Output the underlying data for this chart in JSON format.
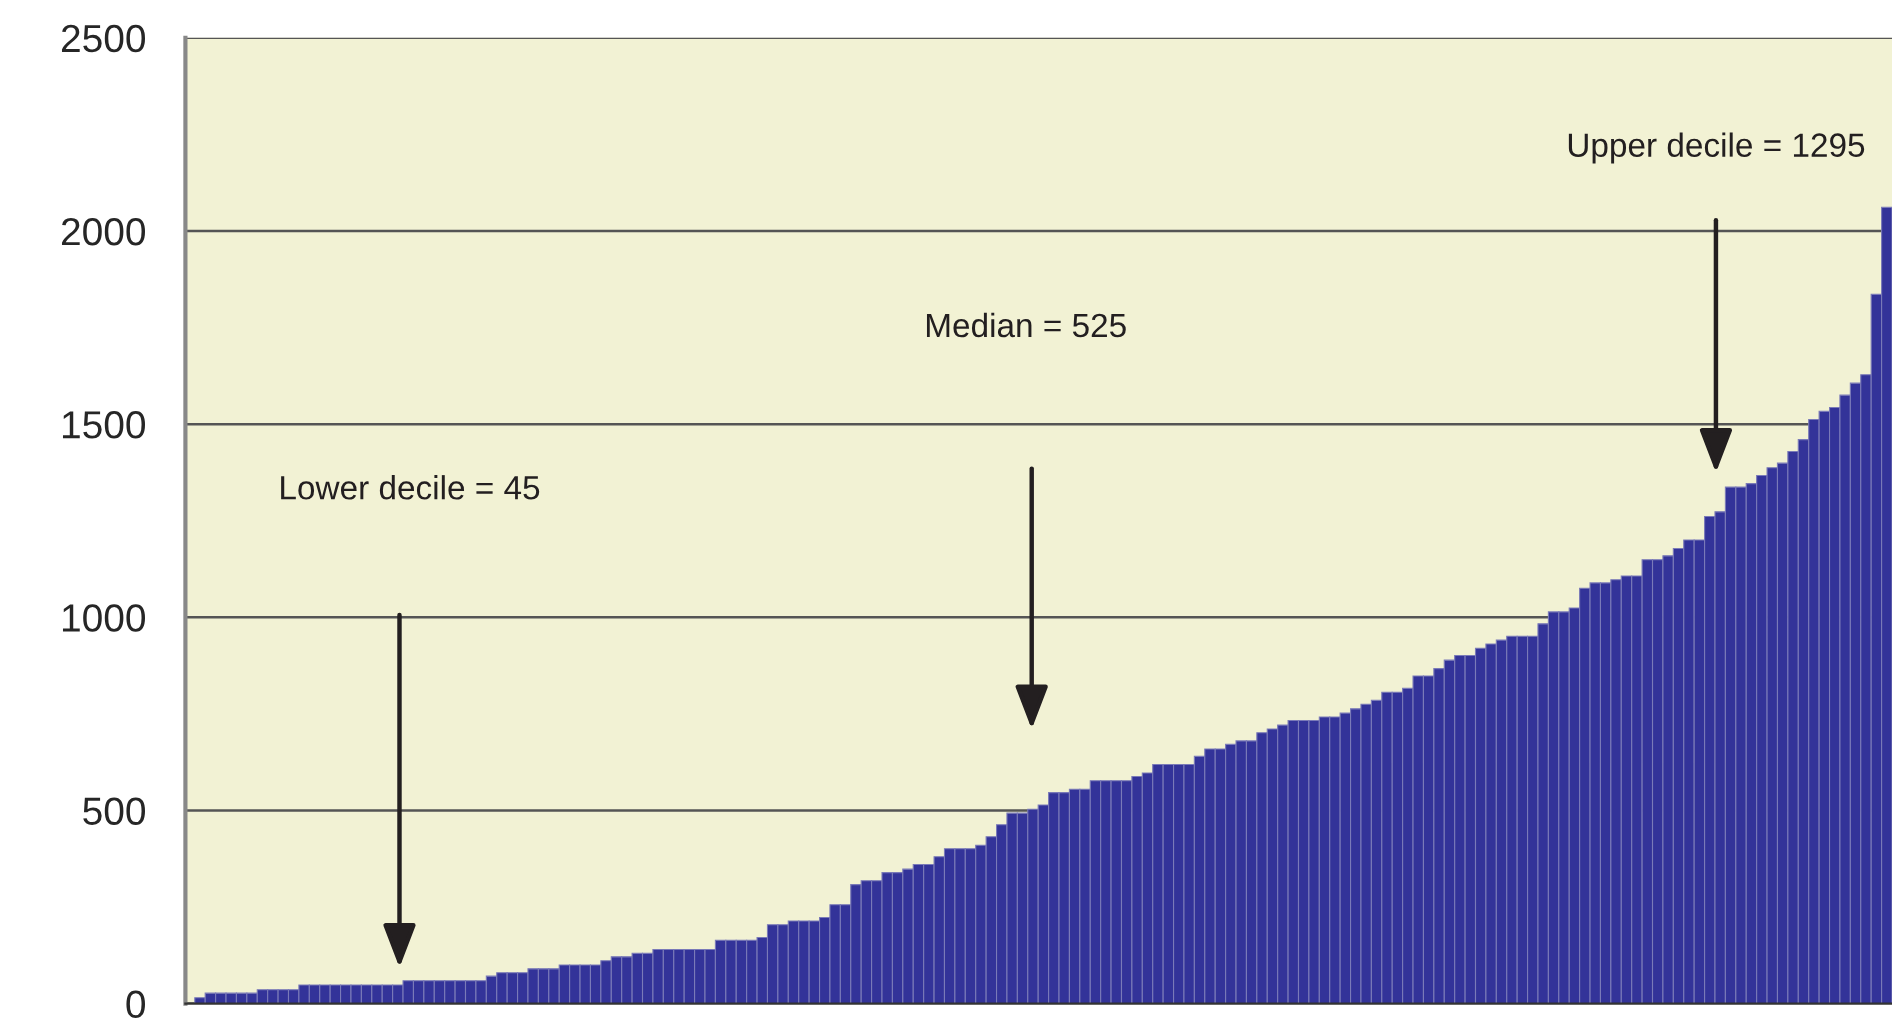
{
  "chart_data": {
    "type": "bar",
    "categories": [
      null,
      null,
      null,
      null,
      null,
      null,
      null,
      null,
      null,
      null,
      null,
      null,
      null,
      null,
      null,
      null,
      null,
      null,
      null,
      null,
      null,
      null,
      null,
      null,
      null,
      null,
      null,
      null,
      null,
      null,
      null,
      null,
      null,
      null,
      null,
      null,
      null,
      null,
      null,
      null,
      null,
      null,
      null,
      null,
      null,
      null,
      null,
      null,
      null,
      null,
      null,
      null,
      null,
      null,
      null,
      null,
      null,
      null,
      null,
      null,
      null,
      null,
      null,
      null,
      null,
      null,
      null,
      null,
      null,
      null,
      null,
      null,
      null,
      null,
      null,
      null,
      null,
      null,
      null,
      null,
      null,
      null,
      null,
      null,
      null,
      null,
      null,
      null,
      null,
      null,
      null,
      null,
      null,
      null,
      null,
      null,
      null,
      null,
      null,
      null,
      null,
      null,
      null,
      null,
      null,
      null,
      null,
      null,
      null,
      null,
      null,
      null,
      null,
      null,
      null,
      null,
      null,
      null,
      null,
      null,
      null,
      null,
      null,
      null,
      null,
      null,
      null,
      null,
      null,
      null,
      null,
      null,
      null,
      null,
      null,
      null,
      null,
      null,
      null,
      null,
      null,
      null,
      null,
      null,
      null,
      null,
      null,
      null,
      null,
      null,
      null,
      null,
      null,
      null,
      null,
      null,
      null,
      null,
      null,
      null,
      null,
      null,
      null
    ],
    "values": [
      15,
      27,
      27,
      27,
      27,
      27,
      36,
      36,
      36,
      36,
      48,
      48,
      48,
      48,
      48,
      48,
      48,
      48,
      48,
      48,
      59,
      59,
      59,
      59,
      59,
      59,
      59,
      59,
      71,
      80,
      80,
      80,
      90,
      90,
      90,
      100,
      100,
      100,
      100,
      111,
      121,
      121,
      130,
      130,
      140,
      140,
      140,
      140,
      140,
      140,
      164,
      164,
      164,
      164,
      171,
      204,
      204,
      214,
      214,
      214,
      223,
      256,
      256,
      308,
      318,
      318,
      339,
      339,
      348,
      360,
      360,
      380,
      401,
      401,
      401,
      410,
      432,
      463,
      493,
      493,
      503,
      514,
      546,
      546,
      555,
      555,
      577,
      577,
      577,
      577,
      588,
      597,
      619,
      619,
      619,
      619,
      640,
      659,
      659,
      671,
      680,
      680,
      701,
      711,
      721,
      733,
      733,
      733,
      742,
      742,
      752,
      763,
      775,
      785,
      806,
      806,
      816,
      848,
      848,
      867,
      889,
      901,
      901,
      920,
      931,
      941,
      951,
      951,
      951,
      983,
      1014,
      1014,
      1024,
      1075,
      1089,
      1089,
      1097,
      1107,
      1107,
      1149,
      1149,
      1159,
      1178,
      1200,
      1200,
      1261,
      1273,
      1337,
      1337,
      1346,
      1367,
      1387,
      1399,
      1429,
      1460,
      1512,
      1533,
      1543,
      1575,
      1606,
      1628,
      1836,
      2061
    ],
    "color": "#333399",
    "ylim": [
      0,
      2500
    ],
    "yticks": [
      0,
      500,
      1000,
      1500,
      2000,
      2500
    ],
    "grid": "y",
    "tick_labels": "y",
    "annotations": [
      "Lower decile = 45",
      "Median = 525",
      "Upper decile = 1295"
    ]
  }
}
